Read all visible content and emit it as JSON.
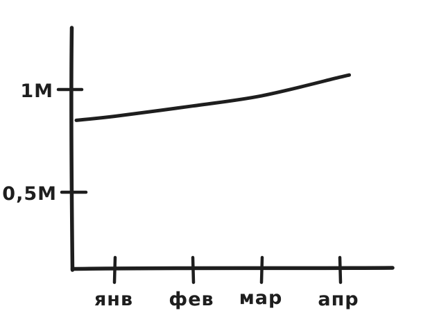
{
  "page": {
    "background_color": "#ffffff"
  },
  "chart_data": {
    "type": "line",
    "title": "",
    "xlabel": "",
    "ylabel": "",
    "categories": [
      "янв",
      "фев",
      "мар",
      "апр"
    ],
    "series": [
      {
        "name": "value",
        "values": [
          0.87,
          0.92,
          0.97,
          1.06
        ]
      }
    ],
    "line_start": {
      "position": "y-axis",
      "value": 0.85
    },
    "line_end": {
      "position": "past-last-tick",
      "value": 1.07
    },
    "y_ticks": [
      {
        "label": "1M",
        "value": 1.0
      },
      {
        "label": "0,5M",
        "value": 0.5
      }
    ],
    "unit": "M",
    "ylim": [
      0,
      1.25
    ],
    "grid": false,
    "legend": false,
    "style": "hand-drawn",
    "stroke_color": "#1e1e1e",
    "background_color": "#ffffff"
  }
}
